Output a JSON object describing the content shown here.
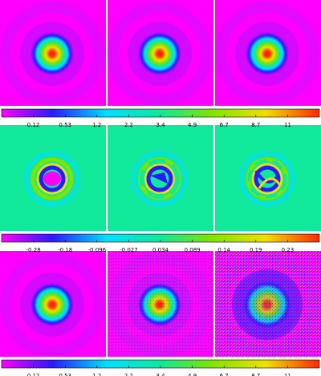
{
  "chart_data": {
    "type": "heatmap",
    "layout": {
      "rows": 3,
      "cols": 3
    },
    "colormap": [
      "#ff00ff",
      "#2a1aff",
      "#00e0ff",
      "#10e89a",
      "#7ee400",
      "#f0e000",
      "#ff2800"
    ],
    "rows": [
      {
        "panels": [
          {
            "pattern": "gaussian",
            "peak": 13,
            "floor": 0.25
          },
          {
            "pattern": "gaussian",
            "peak": 13,
            "floor": 0.25
          },
          {
            "pattern": "gaussian",
            "peak": 13,
            "floor": 0.25
          }
        ],
        "colorbar": {
          "scale": "nonlinear",
          "range": [
            0,
            13
          ],
          "ticks": [
            "0.12",
            "0.53",
            "1.2",
            "2.2",
            "3.4",
            "4.9",
            "6.7",
            "8.7",
            "11"
          ]
        }
      },
      {
        "panels": [
          {
            "pattern": "ring",
            "amplitude": 0.3,
            "note": "circular ring with negative core"
          },
          {
            "pattern": "ring",
            "amplitude": 0.2,
            "note": "broken ring with diagonal core"
          },
          {
            "pattern": "ring",
            "amplitude": 0.2,
            "note": "swirled banded structure"
          }
        ],
        "colorbar": {
          "scale": "linear",
          "range": [
            -0.34,
            0.29
          ],
          "ticks": [
            "-0.28",
            "-0.18",
            "-0.096",
            "-0.027",
            "0.034",
            "0.089",
            "0.14",
            "0.19",
            "0.23"
          ]
        }
      },
      {
        "panels": [
          {
            "pattern": "gaussian",
            "peak": 13,
            "noise": "none"
          },
          {
            "pattern": "gaussian",
            "peak": 13,
            "noise": "moderate"
          },
          {
            "pattern": "gaussian",
            "peak": 11,
            "noise": "strong"
          }
        ],
        "colorbar": {
          "scale": "nonlinear",
          "range": [
            0,
            13
          ],
          "ticks": [
            "0.12",
            "0.53",
            "1.2",
            "2.2",
            "3.4",
            "4.9",
            "6.7",
            "8.7",
            "11"
          ]
        }
      }
    ]
  }
}
